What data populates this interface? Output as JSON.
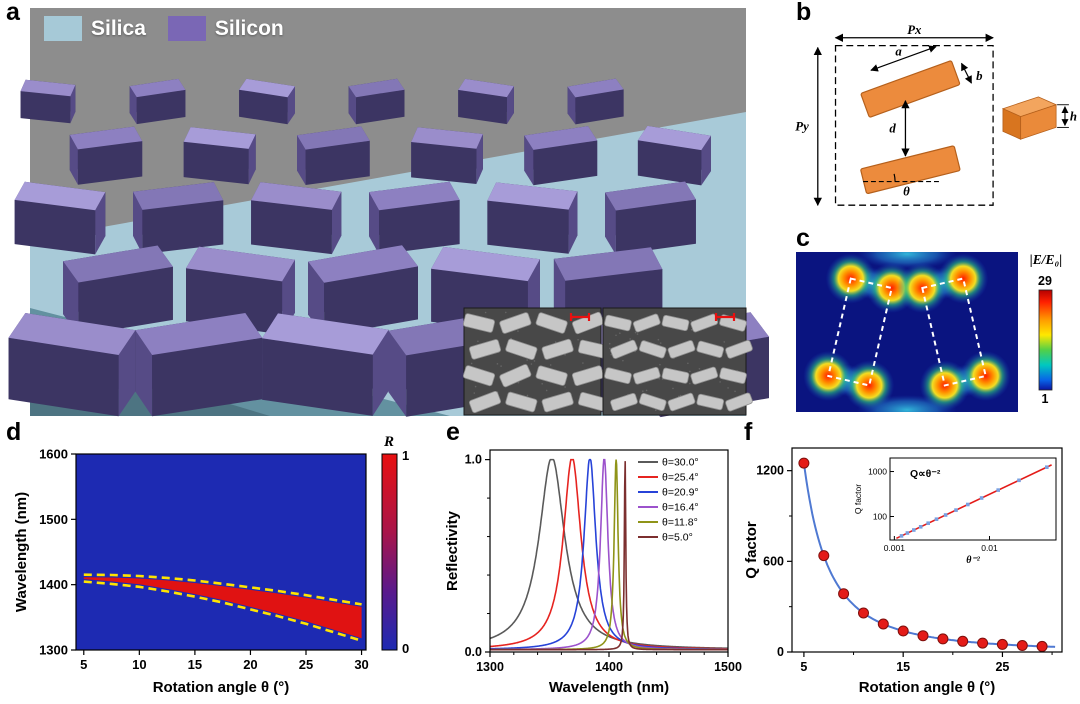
{
  "panels": {
    "a": "a",
    "b": "b",
    "c": "c",
    "d": "d",
    "e": "e",
    "f": "f"
  },
  "panel_a": {
    "legend": [
      {
        "label": "Silica",
        "color": "#a6c9d7"
      },
      {
        "label": "Silicon",
        "color": "#7a67b5"
      }
    ]
  },
  "panel_b": {
    "px": "Px",
    "py": "Py",
    "bar_length": "a",
    "bar_width": "b",
    "gap": "d",
    "angle": "θ",
    "height": "h"
  },
  "panel_c": {
    "colorbar_label": "|E/E₀|",
    "colorbar_max": "29",
    "colorbar_min": "1"
  },
  "chart_data": [
    {
      "id": "panel-d",
      "type": "heatmap",
      "xlabel": "Rotation angle θ (°)",
      "ylabel": "Wavelength (nm)",
      "xlim": [
        4.3,
        30.4
      ],
      "ylim": [
        1300,
        1600
      ],
      "xticks": [
        5,
        10,
        15,
        20,
        25,
        30
      ],
      "yticks": [
        1300,
        1400,
        1500,
        1600
      ],
      "colorbar": {
        "label": "R",
        "max": "1",
        "min": "0",
        "top_color": "#e81010",
        "bottom_color": "#1d2ab2"
      },
      "band": {
        "theta": [
          5,
          7.5,
          10,
          12.5,
          15,
          17.5,
          20,
          22.5,
          25,
          27.5,
          30
        ],
        "center_wavelength": [
          1410,
          1408,
          1405,
          1400,
          1394,
          1387,
          1379,
          1371,
          1362,
          1352,
          1342
        ],
        "half_width": [
          1.5,
          3,
          4.5,
          6.5,
          8.5,
          10.5,
          13,
          15.5,
          18,
          21,
          24
        ],
        "fill_color": "#e01212",
        "outline_color": "#ffe400",
        "outline_style": "dashed"
      },
      "background_color": "#1d2ab2"
    },
    {
      "id": "panel-e",
      "type": "line",
      "xlabel": "Wavelength (nm)",
      "ylabel": "Reflectivity",
      "xlim": [
        1300,
        1500
      ],
      "ylim": [
        0,
        1.05
      ],
      "xticks": [
        1300,
        1400,
        1500
      ],
      "yticks": [
        0,
        1
      ],
      "yticklabels": [
        "0.0",
        "1.0"
      ],
      "legend_position": "top-right",
      "series": [
        {
          "name": "θ=30.0°",
          "color": "#5a5a5a",
          "peak_center": 1352,
          "fwhm": 26,
          "peak_reflectivity": 1.0
        },
        {
          "name": "θ=25.4°",
          "color": "#e62420",
          "peak_center": 1369,
          "fwhm": 18,
          "peak_reflectivity": 1.0
        },
        {
          "name": "θ=20.9°",
          "color": "#2743d8",
          "peak_center": 1384,
          "fwhm": 12,
          "peak_reflectivity": 1.0
        },
        {
          "name": "θ=16.4°",
          "color": "#9c52cc",
          "peak_center": 1396,
          "fwhm": 7.5,
          "peak_reflectivity": 1.0
        },
        {
          "name": "θ=11.8°",
          "color": "#8f9418",
          "peak_center": 1406,
          "fwhm": 4,
          "peak_reflectivity": 1.0
        },
        {
          "name": "θ=5.0°",
          "color": "#7c2f2f",
          "peak_center": 1413.5,
          "fwhm": 1.4,
          "peak_reflectivity": 1.0
        }
      ]
    },
    {
      "id": "panel-f",
      "type": "scatter-line",
      "xlabel": "Rotation angle θ (°)",
      "ylabel": "Q factor",
      "xlim": [
        3.8,
        31
      ],
      "ylim": [
        0,
        1350
      ],
      "xticks": [
        5,
        15,
        25
      ],
      "yticks": [
        0,
        600,
        1200
      ],
      "marker_color": "#e41b18",
      "line_color": "#4f79d2",
      "points": {
        "theta": [
          5,
          7,
          9,
          11,
          13,
          15,
          17,
          19,
          21,
          23,
          25,
          27,
          29
        ],
        "q": [
          1250,
          638,
          386,
          258,
          185,
          139,
          108,
          87,
          71,
          59,
          50,
          43,
          37
        ]
      },
      "inset": {
        "annotation": "Q∝θ⁻²",
        "xlabel": "θ⁻²",
        "ylabel": "Q factor",
        "scale": "log-log",
        "xticks": [
          0.001,
          0.01
        ],
        "xticklabels": [
          "0.001",
          "0.01"
        ],
        "yticks": [
          100,
          1000
        ],
        "yticklabels": [
          "100",
          "1000"
        ],
        "fit_line_color": "#e41b18",
        "data_color": "#7aa0e0"
      }
    }
  ]
}
